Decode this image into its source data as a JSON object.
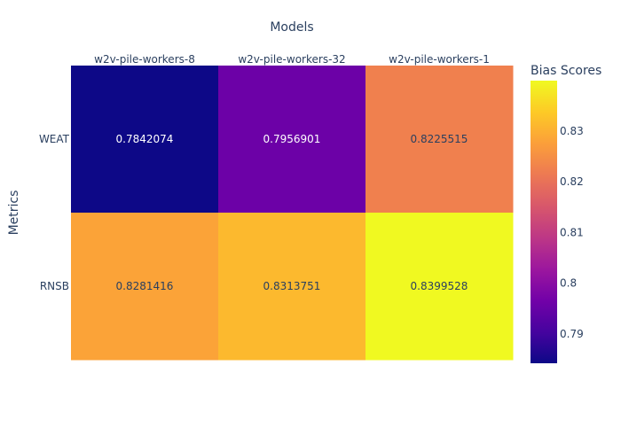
{
  "chart_data": {
    "type": "heatmap",
    "title": "",
    "xlabel": "Models",
    "ylabel": "Metrics",
    "x": [
      "w2v-pile-workers-8",
      "w2v-pile-workers-32",
      "w2v-pile-workers-1"
    ],
    "y": [
      "WEAT",
      "RNSB"
    ],
    "z": [
      [
        0.7842074,
        0.7956901,
        0.8225515
      ],
      [
        0.8281416,
        0.8313751,
        0.8399528
      ]
    ],
    "z_labels": [
      [
        "0.7842074",
        "0.7956901",
        "0.8225515"
      ],
      [
        "0.8281416",
        "0.8313751",
        "0.8399528"
      ]
    ],
    "colorbar": {
      "title": "Bias Scores",
      "range": [
        0.7842074,
        0.8399528
      ],
      "ticks": [
        0.79,
        0.8,
        0.81,
        0.82,
        0.83
      ],
      "tick_labels": [
        "0.79",
        "0.8",
        "0.81",
        "0.82",
        "0.83"
      ]
    },
    "colorscale": [
      "#0d0887",
      "#46039f",
      "#7201a8",
      "#9c179e",
      "#bd3786",
      "#d8576b",
      "#ed7953",
      "#fb9f3a",
      "#fdca26",
      "#f0f921"
    ],
    "x_axis_side": "top",
    "grid": false
  }
}
